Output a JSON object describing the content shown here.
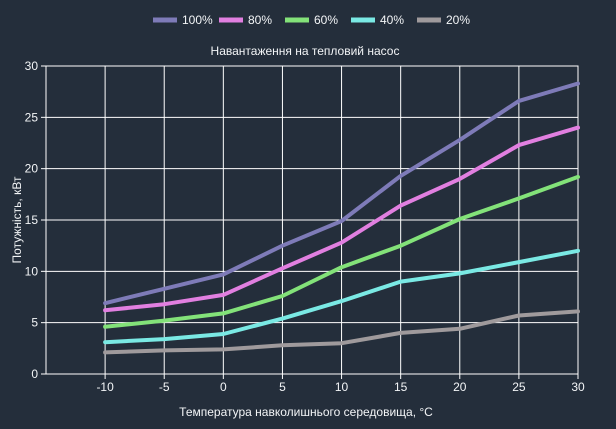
{
  "chart_data": {
    "type": "line",
    "title": "Навантаження на тепловий насос",
    "xlabel": "Температура навколишнього середовища, °C",
    "ylabel": "Потужність, кВт",
    "xlim": [
      -15,
      30
    ],
    "ylim": [
      0,
      30
    ],
    "x_ticks": [
      -10,
      -5,
      0,
      5,
      10,
      15,
      20,
      25,
      30
    ],
    "y_ticks": [
      0,
      5,
      10,
      15,
      20,
      25,
      30
    ],
    "x_tick_labels": [
      "-10",
      "-5",
      "0",
      "5",
      "10",
      "15",
      "20",
      "25",
      "30"
    ],
    "y_tick_labels": [
      "0",
      "5",
      "10",
      "15",
      "20",
      "25",
      "30"
    ],
    "grid": true,
    "legend_position": "top-center",
    "background_color": "#242e3b",
    "grid_color": "#ffffff",
    "x": [
      -10,
      -5,
      0,
      5,
      10,
      15,
      20,
      25,
      30
    ],
    "series": [
      {
        "name": "100%",
        "color": "#7e7bb8",
        "values": [
          6.9,
          8.3,
          9.7,
          12.5,
          14.9,
          19.3,
          22.8,
          26.6,
          28.3
        ]
      },
      {
        "name": "80%",
        "color": "#e17fe0",
        "values": [
          6.2,
          6.8,
          7.7,
          10.3,
          12.8,
          16.4,
          19.0,
          22.3,
          24.0
        ]
      },
      {
        "name": "60%",
        "color": "#83e279",
        "values": [
          4.6,
          5.2,
          5.9,
          7.6,
          10.4,
          12.5,
          15.1,
          17.1,
          19.2
        ]
      },
      {
        "name": "40%",
        "color": "#7ae9e4",
        "values": [
          3.1,
          3.4,
          3.9,
          5.4,
          7.1,
          9.0,
          9.8,
          10.9,
          12.0
        ]
      },
      {
        "name": "20%",
        "color": "#9f9a9c",
        "values": [
          2.1,
          2.3,
          2.4,
          2.8,
          3.0,
          4.0,
          4.4,
          5.7,
          6.1
        ]
      }
    ]
  }
}
